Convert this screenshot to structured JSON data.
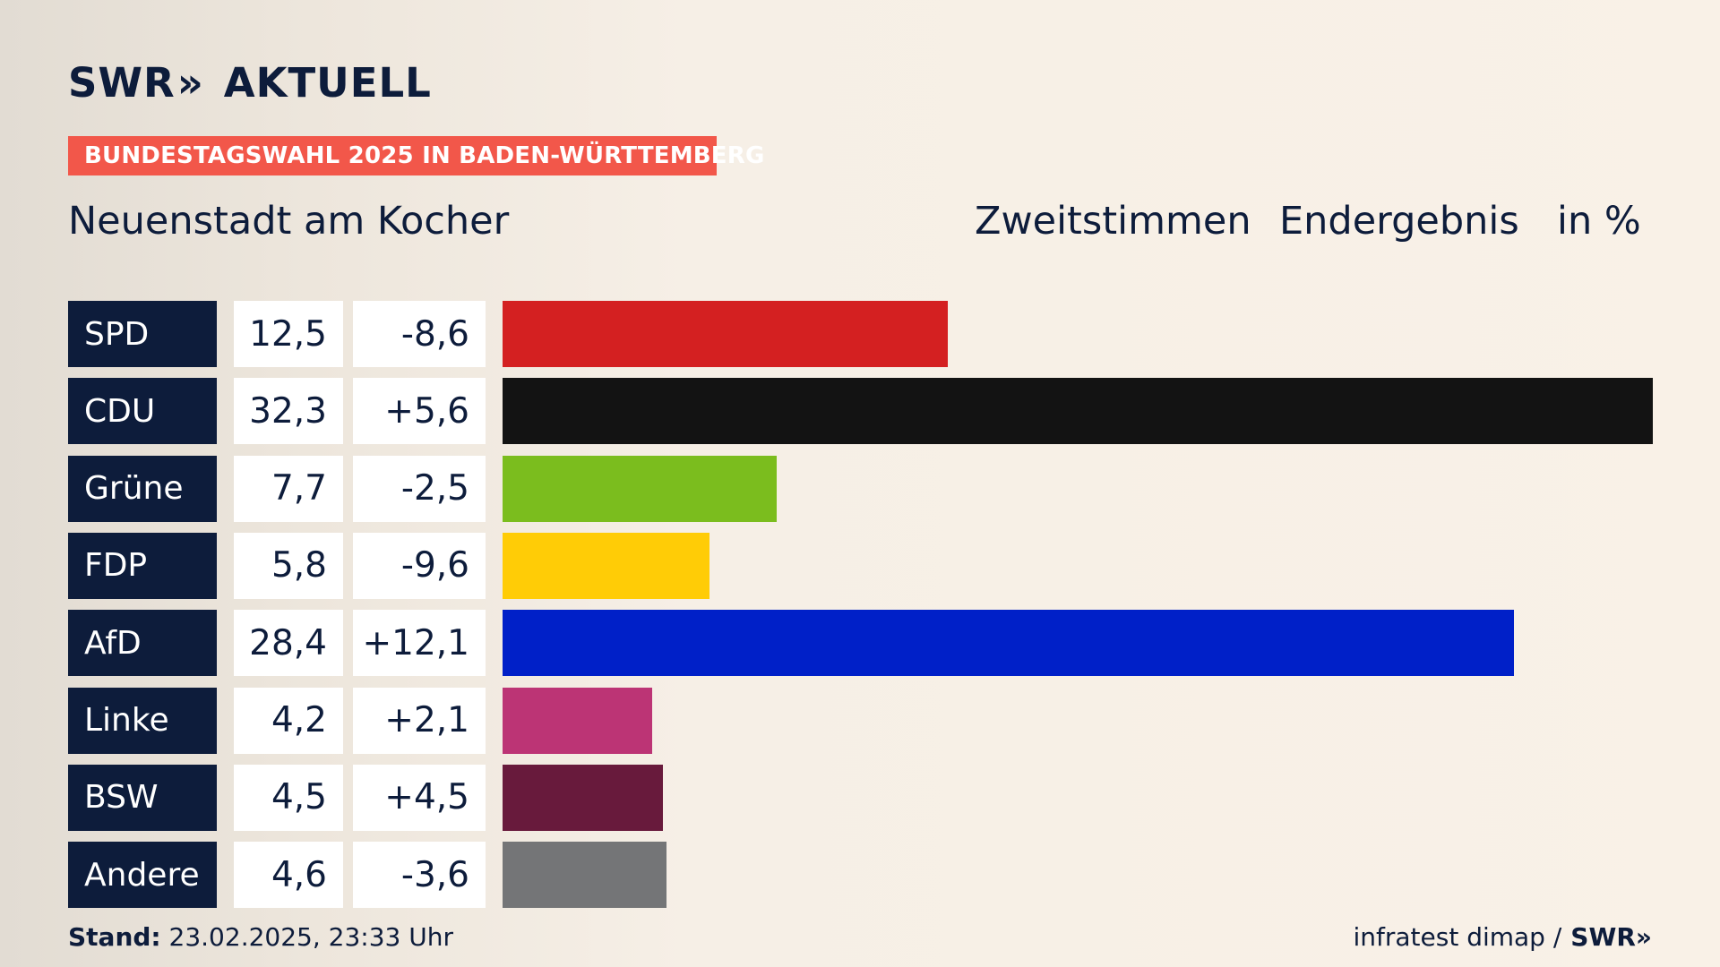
{
  "header": {
    "logo_text": "SWR",
    "logo_chevrons": "»",
    "logo_suffix": "AKTUELL",
    "tag": "BUNDESTAGSWAHL 2025 IN BADEN-WÜRTTEMBERG",
    "place": "Neuenstadt am Kocher",
    "col1": "Zweitstimmen",
    "col2": "Endergebnis",
    "col3": "in %"
  },
  "footer": {
    "stand_label": "Stand:",
    "stand_value": "23.02.2025, 23:33 Uhr",
    "source": "infratest dimap /",
    "source_brand": "SWR»"
  },
  "chart_data": {
    "type": "bar",
    "orientation": "horizontal",
    "categories": [
      "SPD",
      "CDU",
      "Grüne",
      "FDP",
      "AfD",
      "Linke",
      "BSW",
      "Andere"
    ],
    "values": [
      12.5,
      32.3,
      7.7,
      5.8,
      28.4,
      4.2,
      4.5,
      4.6
    ],
    "value_labels": [
      "12,5",
      "32,3",
      "7,7",
      "5,8",
      "28,4",
      "4,2",
      "4,5",
      "4,6"
    ],
    "diff_labels": [
      "-8,6",
      "+5,6",
      "-2,5",
      "-9,6",
      "+12,1",
      "+2,1",
      "+4,5",
      "-3,6"
    ],
    "colors": [
      "#d42021",
      "#131313",
      "#7bbd1e",
      "#ffcc06",
      "#0020c8",
      "#bc3475",
      "#681a3c",
      "#747577"
    ],
    "xlim": [
      0,
      32.3
    ],
    "grid": false
  }
}
